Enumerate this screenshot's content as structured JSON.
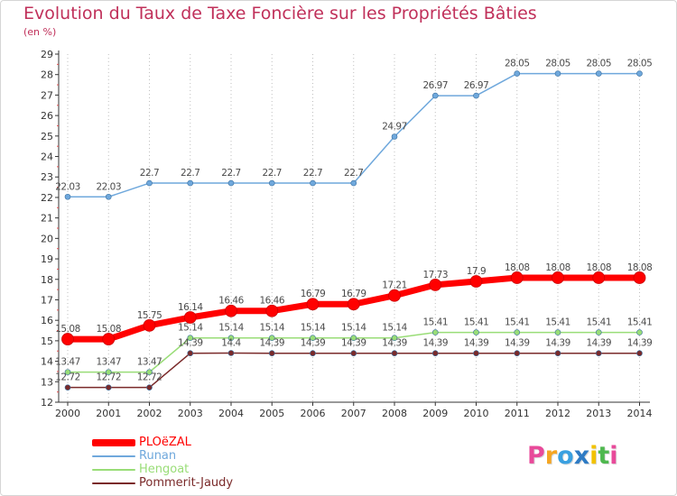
{
  "chart_data": {
    "type": "line",
    "title": "Evolution du Taux de Taxe Foncière sur les Propriétés Bâties",
    "subtitle": "(en %)",
    "xlabel": "",
    "ylabel": "",
    "x": [
      2000,
      2001,
      2002,
      2003,
      2004,
      2005,
      2006,
      2007,
      2008,
      2009,
      2010,
      2011,
      2012,
      2013,
      2014
    ],
    "ylim": [
      12,
      29
    ],
    "yticks": [
      12,
      13,
      14,
      15,
      16,
      17,
      18,
      19,
      20,
      21,
      22,
      23,
      24,
      25,
      26,
      27,
      28,
      29
    ],
    "grid": "vertical-dotted",
    "series": [
      {
        "name": "PLOëZAL",
        "color": "#ff0000",
        "values": [
          15.08,
          15.08,
          15.75,
          16.14,
          16.46,
          16.46,
          16.79,
          16.79,
          17.21,
          17.73,
          17.9,
          18.08,
          18.08,
          18.08,
          18.08
        ],
        "labels": [
          "15.08",
          "15.08",
          "15.75",
          "16.14",
          "16.46",
          "16.46",
          "16.79",
          "16.79",
          "17.21",
          "17.73",
          "17.9",
          "18.08",
          "18.08",
          "18.08",
          "18.08"
        ]
      },
      {
        "name": "Runan",
        "color": "#6fa8dc",
        "values": [
          22.03,
          22.03,
          22.7,
          22.7,
          22.7,
          22.7,
          22.7,
          22.7,
          24.97,
          26.97,
          26.97,
          28.05,
          28.05,
          28.05,
          28.05
        ],
        "labels": [
          "22.03",
          "22.03",
          "22.7",
          "22.7",
          "22.7",
          "22.7",
          "22.7",
          "22.7",
          "24.97",
          "26.97",
          "26.97",
          "28.05",
          "28.05",
          "28.05",
          "28.05"
        ]
      },
      {
        "name": "Hengoat",
        "color": "#99dd77",
        "values": [
          13.47,
          13.47,
          13.47,
          15.14,
          15.14,
          15.14,
          15.14,
          15.14,
          15.14,
          15.41,
          15.41,
          15.41,
          15.41,
          15.41,
          15.41
        ],
        "labels": [
          "13.47",
          "13.47",
          "13.47",
          "15.14",
          "15.14",
          "15.14",
          "15.14",
          "15.14",
          "15.14",
          "15.41",
          "15.41",
          "15.41",
          "15.41",
          "15.41",
          "15.41"
        ]
      },
      {
        "name": "Pommerit-Jaudy",
        "color": "#7a2a2a",
        "values": [
          12.72,
          12.72,
          12.72,
          14.39,
          14.4,
          14.39,
          14.39,
          14.39,
          14.39,
          14.39,
          14.39,
          14.39,
          14.39,
          14.39,
          14.39
        ],
        "labels": [
          "12.72",
          "12.72",
          "12.72",
          "14.39",
          "14.4",
          "14.39",
          "14.39",
          "14.39",
          "14.39",
          "14.39",
          "14.39",
          "14.39",
          "14.39",
          "14.39",
          "14.39"
        ]
      }
    ],
    "legend": "bottom-left"
  },
  "logo": {
    "letters": [
      "P",
      "r",
      "o",
      "x",
      "i",
      "t",
      "i"
    ],
    "colors": [
      "#e84a9a",
      "#f5a623",
      "#3aa0e0",
      "#2e7bc4",
      "#f2c200",
      "#4fb84f",
      "#e84a9a"
    ]
  }
}
